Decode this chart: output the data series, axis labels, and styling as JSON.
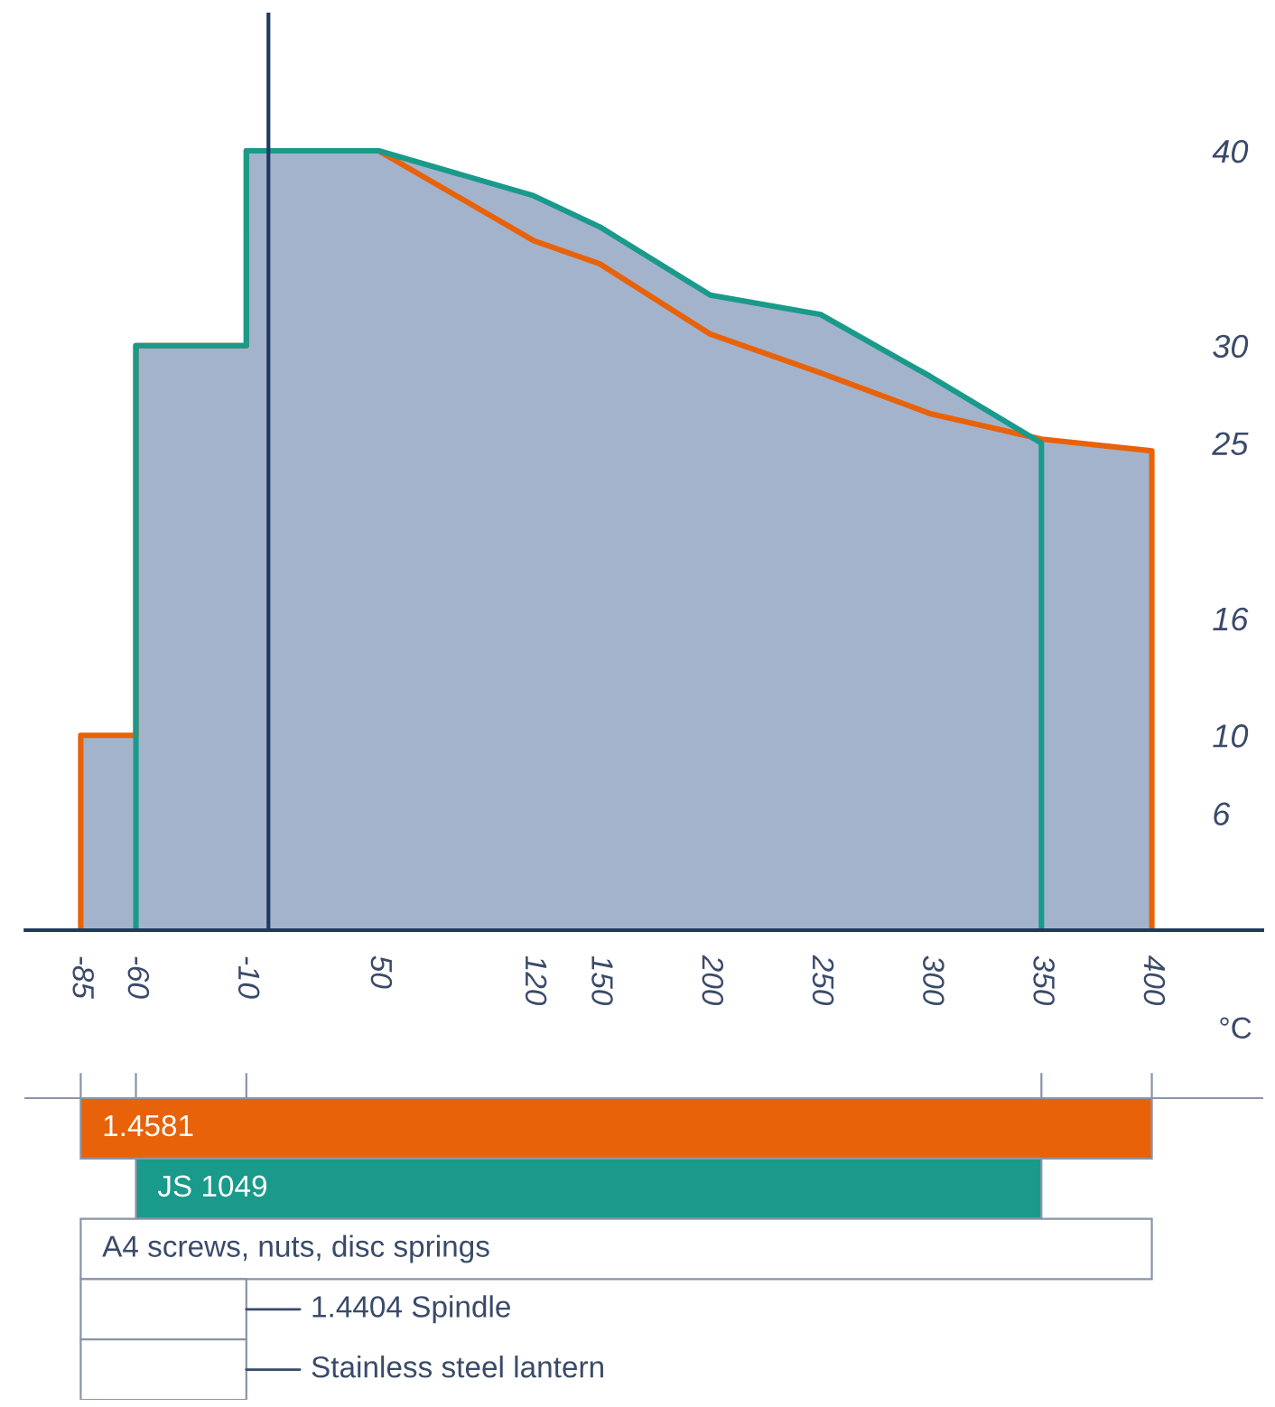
{
  "chart_data": [
    {
      "type": "area",
      "xlabel": "°C",
      "series": [
        {
          "color": "#e8620a",
          "x": [
            -85,
            -85,
            -60,
            -60,
            -10,
            -10,
            50,
            120,
            150,
            200,
            250,
            300,
            350,
            400,
            400
          ],
          "values": [
            0,
            10,
            10,
            30,
            30,
            40,
            40,
            35.4,
            34.2,
            30.6,
            28.6,
            26.5,
            25.2,
            24.6,
            0
          ]
        },
        {
          "color": "#1a9a8a",
          "x": [
            -60,
            -60,
            -10,
            -10,
            50,
            120,
            150,
            200,
            250,
            300,
            350,
            350
          ],
          "values": [
            0,
            30,
            30,
            40,
            40,
            37.7,
            36.1,
            32.6,
            31.6,
            28.4,
            25,
            0
          ]
        }
      ],
      "xlim": [
        -110,
        450
      ],
      "ylim": [
        0,
        47
      ],
      "xticks": [
        -85,
        -60,
        -10,
        50,
        120,
        150,
        200,
        250,
        300,
        350,
        400
      ],
      "yticks": [
        6,
        10,
        16,
        25,
        30,
        40
      ],
      "grid": false,
      "legend": false
    },
    {
      "type": "bar",
      "orientation": "horizontal",
      "categories": [
        "1.4581",
        "JS 1049",
        "A4 screws, nuts, disc springs",
        "1.4404 Spindle",
        "Stainless steel lantern"
      ],
      "base": [
        -85,
        -60,
        -85,
        -85,
        -85
      ],
      "values": [
        485,
        410,
        485,
        75,
        75
      ],
      "colors": [
        "#e8620a",
        "#1a9a8a",
        "#ffffff",
        "#ffffff",
        "#ffffff"
      ],
      "xlim": [
        -110,
        450
      ],
      "xticks": [
        -85,
        -60,
        -10,
        350,
        400
      ],
      "tick_labels": false
    }
  ]
}
